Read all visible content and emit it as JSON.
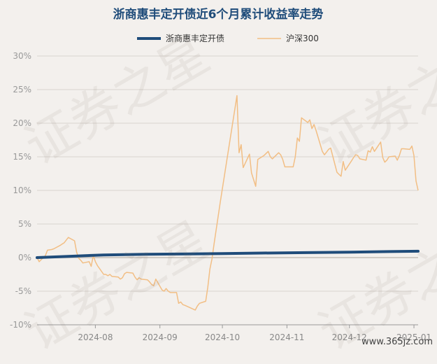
{
  "colors": {
    "background": "#f3f0ed",
    "fund": "#1f4c7a",
    "index": "#f2be84",
    "grid": "#d8d4cf",
    "title": "#1f4c7a"
  },
  "chart_data": {
    "type": "line",
    "title": "浙商惠丰定开债近6个月累计收益率走势",
    "ylim": [
      -10,
      30
    ],
    "yticks": [
      -10,
      -5,
      0,
      5,
      10,
      15,
      20,
      25,
      30
    ],
    "ytick_labels": [
      "-10%",
      "-5%",
      "0%",
      "5%",
      "10%",
      "15%",
      "20%",
      "25%",
      "30%"
    ],
    "xlim": [
      "2024-07-04",
      "2025-01-03"
    ],
    "xticks": [
      "2024-08-01",
      "2024-09-01",
      "2024-10-01",
      "2024-11-01",
      "2024-12-01",
      "2025-01-01"
    ],
    "xtick_labels": [
      "2024-08",
      "2024-09",
      "2024-10",
      "2024-11",
      "2024-12",
      "2025-01"
    ],
    "grid": true,
    "legend_position": "top",
    "series": [
      {
        "name": "浙商惠丰定开债",
        "color": "#1f4c7a",
        "points": [
          [
            "2024-07-04",
            0.0
          ],
          [
            "2024-07-20",
            0.2
          ],
          [
            "2024-08-05",
            0.4
          ],
          [
            "2024-08-25",
            0.5
          ],
          [
            "2024-09-15",
            0.55
          ],
          [
            "2024-10-01",
            0.6
          ],
          [
            "2024-10-20",
            0.68
          ],
          [
            "2024-11-10",
            0.74
          ],
          [
            "2024-12-01",
            0.8
          ],
          [
            "2024-12-20",
            0.9
          ],
          [
            "2025-01-03",
            0.95
          ]
        ]
      },
      {
        "name": "沪深300",
        "color": "#f2be84",
        "points": [
          [
            "2024-07-04",
            0.0
          ],
          [
            "2024-07-05",
            -0.6
          ],
          [
            "2024-07-08",
            0.3
          ],
          [
            "2024-07-09",
            1.1
          ],
          [
            "2024-07-11",
            1.2
          ],
          [
            "2024-07-12",
            1.3
          ],
          [
            "2024-07-15",
            1.8
          ],
          [
            "2024-07-16",
            2.0
          ],
          [
            "2024-07-17",
            2.2
          ],
          [
            "2024-07-19",
            3.0
          ],
          [
            "2024-07-22",
            2.5
          ],
          [
            "2024-07-23",
            0.8
          ],
          [
            "2024-07-24",
            -0.1
          ],
          [
            "2024-07-25",
            -0.4
          ],
          [
            "2024-07-26",
            -0.8
          ],
          [
            "2024-07-29",
            -0.6
          ],
          [
            "2024-07-30",
            -1.3
          ],
          [
            "2024-07-31",
            0.3
          ],
          [
            "2024-08-01",
            -0.6
          ],
          [
            "2024-08-02",
            -1.2
          ],
          [
            "2024-08-05",
            -2.5
          ],
          [
            "2024-08-06",
            -2.5
          ],
          [
            "2024-08-07",
            -2.7
          ],
          [
            "2024-08-08",
            -2.5
          ],
          [
            "2024-08-09",
            -2.8
          ],
          [
            "2024-08-12",
            -2.9
          ],
          [
            "2024-08-13",
            -3.2
          ],
          [
            "2024-08-14",
            -3.0
          ],
          [
            "2024-08-15",
            -2.4
          ],
          [
            "2024-08-16",
            -2.2
          ],
          [
            "2024-08-19",
            -2.3
          ],
          [
            "2024-08-20",
            -2.9
          ],
          [
            "2024-08-21",
            -3.3
          ],
          [
            "2024-08-22",
            -3.0
          ],
          [
            "2024-08-23",
            -3.2
          ],
          [
            "2024-08-26",
            -3.3
          ],
          [
            "2024-08-27",
            -3.6
          ],
          [
            "2024-08-28",
            -4.0
          ],
          [
            "2024-08-29",
            -4.2
          ],
          [
            "2024-08-30",
            -3.2
          ],
          [
            "2024-09-02",
            -4.8
          ],
          [
            "2024-09-03",
            -5.0
          ],
          [
            "2024-09-04",
            -4.6
          ],
          [
            "2024-09-05",
            -5.0
          ],
          [
            "2024-09-06",
            -5.2
          ],
          [
            "2024-09-09",
            -5.2
          ],
          [
            "2024-09-10",
            -6.8
          ],
          [
            "2024-09-11",
            -6.6
          ],
          [
            "2024-09-12",
            -7.0
          ],
          [
            "2024-09-13",
            -7.1
          ],
          [
            "2024-09-18",
            -7.8
          ],
          [
            "2024-09-19",
            -7.2
          ],
          [
            "2024-09-20",
            -6.8
          ],
          [
            "2024-09-23",
            -6.5
          ],
          [
            "2024-09-24",
            -4.4
          ],
          [
            "2024-09-25",
            -1.7
          ],
          [
            "2024-09-26",
            -0.2
          ],
          [
            "2024-09-27",
            2.0
          ],
          [
            "2024-09-30",
            8.3
          ],
          [
            "2024-10-08",
            24.1
          ],
          [
            "2024-10-09",
            15.6
          ],
          [
            "2024-10-10",
            16.8
          ],
          [
            "2024-10-11",
            13.4
          ],
          [
            "2024-10-14",
            15.4
          ],
          [
            "2024-10-15",
            12.6
          ],
          [
            "2024-10-16",
            11.6
          ],
          [
            "2024-10-17",
            10.6
          ],
          [
            "2024-10-18",
            14.6
          ],
          [
            "2024-10-21",
            15.2
          ],
          [
            "2024-10-22",
            15.5
          ],
          [
            "2024-10-23",
            15.8
          ],
          [
            "2024-10-24",
            15.0
          ],
          [
            "2024-10-25",
            14.7
          ],
          [
            "2024-10-28",
            15.6
          ],
          [
            "2024-10-29",
            15.3
          ],
          [
            "2024-10-30",
            14.6
          ],
          [
            "2024-10-31",
            13.5
          ],
          [
            "2024-11-01",
            13.5
          ],
          [
            "2024-11-04",
            13.5
          ],
          [
            "2024-11-05",
            15.0
          ],
          [
            "2024-11-06",
            17.8
          ],
          [
            "2024-11-07",
            17.3
          ],
          [
            "2024-11-08",
            20.8
          ],
          [
            "2024-11-11",
            20.1
          ],
          [
            "2024-11-12",
            20.5
          ],
          [
            "2024-11-13",
            19.2
          ],
          [
            "2024-11-14",
            19.8
          ],
          [
            "2024-11-15",
            18.9
          ],
          [
            "2024-11-18",
            15.8
          ],
          [
            "2024-11-19",
            15.3
          ],
          [
            "2024-11-20",
            15.7
          ],
          [
            "2024-11-21",
            16.1
          ],
          [
            "2024-11-22",
            16.3
          ],
          [
            "2024-11-25",
            12.7
          ],
          [
            "2024-11-26",
            12.4
          ],
          [
            "2024-11-27",
            12.1
          ],
          [
            "2024-11-28",
            14.3
          ],
          [
            "2024-11-29",
            13.0
          ],
          [
            "2024-12-02",
            14.4
          ],
          [
            "2024-12-03",
            14.9
          ],
          [
            "2024-12-04",
            15.3
          ],
          [
            "2024-12-05",
            15.2
          ],
          [
            "2024-12-06",
            14.7
          ],
          [
            "2024-12-09",
            14.5
          ],
          [
            "2024-12-10",
            15.9
          ],
          [
            "2024-12-11",
            15.7
          ],
          [
            "2024-12-12",
            16.5
          ],
          [
            "2024-12-13",
            15.8
          ],
          [
            "2024-12-16",
            17.2
          ],
          [
            "2024-12-17",
            14.9
          ],
          [
            "2024-12-18",
            14.2
          ],
          [
            "2024-12-19",
            14.5
          ],
          [
            "2024-12-20",
            15.0
          ],
          [
            "2024-12-23",
            15.1
          ],
          [
            "2024-12-24",
            14.5
          ],
          [
            "2024-12-25",
            15.2
          ],
          [
            "2024-12-26",
            16.2
          ],
          [
            "2024-12-27",
            16.2
          ],
          [
            "2024-12-30",
            16.1
          ],
          [
            "2024-12-31",
            16.6
          ],
          [
            "2025-01-01",
            15.2
          ],
          [
            "2025-01-02",
            11.4
          ],
          [
            "2025-01-03",
            10.0
          ]
        ]
      }
    ]
  },
  "watermark": [
    "证券之星",
    "证券之星",
    "证券之星",
    "证券之星"
  ],
  "site_text": "www.365jz.com"
}
